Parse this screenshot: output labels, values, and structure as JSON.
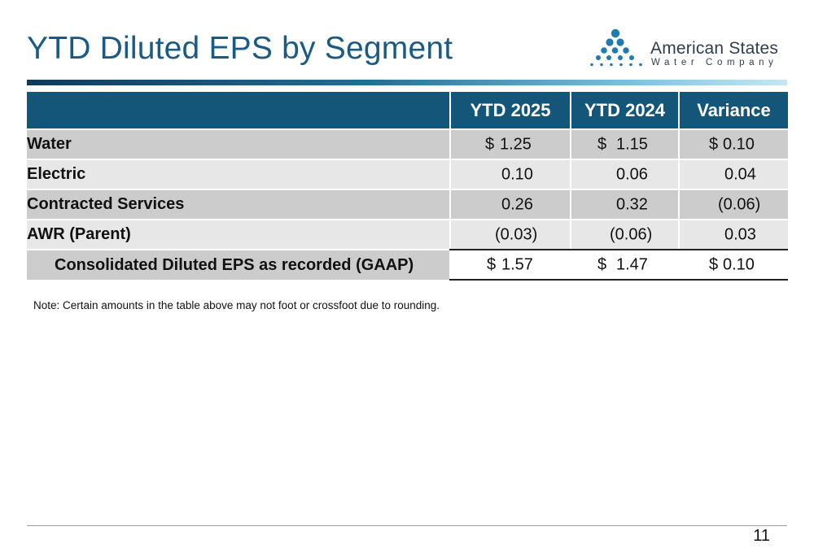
{
  "slide": {
    "title": "YTD Diluted EPS by Segment",
    "page_number": "11"
  },
  "logo": {
    "name_line1": "American States",
    "name_line2": "Water Company",
    "icon": "water-drops-pyramid-icon",
    "color": "#1f7ab0"
  },
  "table": {
    "headers": [
      "",
      "YTD 2025",
      "YTD 2024",
      "Variance"
    ],
    "rows": [
      {
        "label": "Water",
        "ytd2025_sym": "$",
        "ytd2025": "1.25",
        "ytd2024_sym": "$",
        "ytd2024": "1.15",
        "variance_sym": "$",
        "variance": "0.10"
      },
      {
        "label": "Electric",
        "ytd2025_sym": "",
        "ytd2025": "0.10",
        "ytd2024_sym": "",
        "ytd2024": "0.06",
        "variance_sym": "",
        "variance": "0.04"
      },
      {
        "label": "Contracted Services",
        "ytd2025_sym": "",
        "ytd2025": "0.26",
        "ytd2024_sym": "",
        "ytd2024": "0.32",
        "variance_sym": "",
        "variance": "(0.06)"
      },
      {
        "label": "AWR (Parent)",
        "ytd2025_sym": "",
        "ytd2025": "(0.03)",
        "ytd2024_sym": "",
        "ytd2024": "(0.06)",
        "variance_sym": "",
        "variance": "0.03"
      },
      {
        "label": "Consolidated Diluted EPS as recorded (GAAP)",
        "ytd2025_sym": "$",
        "ytd2025": "1.57",
        "ytd2024_sym": "$",
        "ytd2024": "1.47",
        "variance_sym": "$",
        "variance": "0.10"
      }
    ]
  },
  "note": "Note: Certain amounts in the table above may not foot or crossfoot due to rounding.",
  "colors": {
    "title": "#1a5b86",
    "header_bg": "#14567a",
    "row_dark": "#cccccc",
    "row_light": "#e7e7e7"
  }
}
